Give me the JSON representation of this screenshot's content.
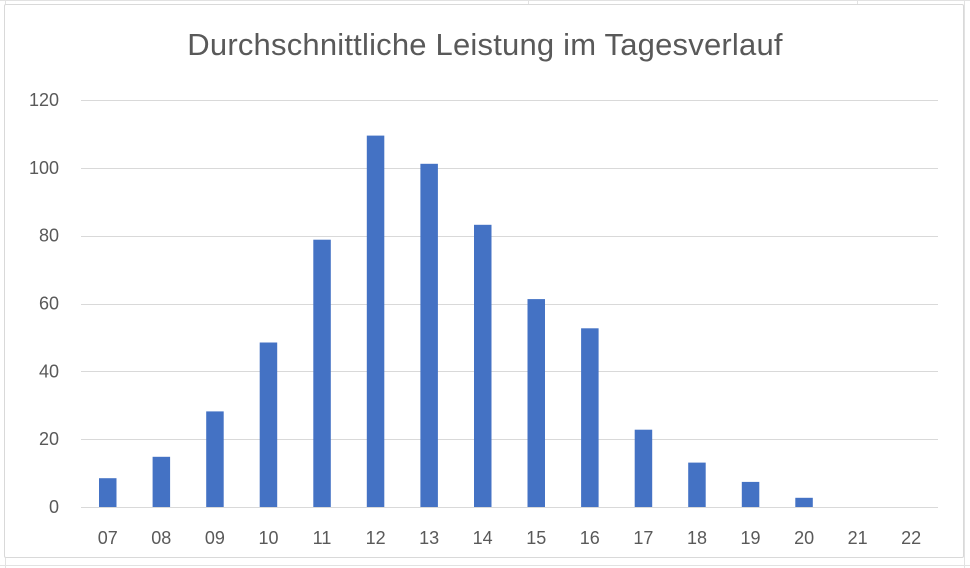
{
  "chart_data": {
    "type": "bar",
    "title": "Durchschnittliche Leistung im Tagesverlauf",
    "xlabel": "",
    "ylabel": "",
    "categories": [
      "07",
      "08",
      "09",
      "10",
      "11",
      "12",
      "13",
      "14",
      "15",
      "16",
      "17",
      "18",
      "19",
      "20",
      "21",
      "22"
    ],
    "values": [
      8.5,
      14.8,
      28.2,
      48.5,
      78.8,
      109.5,
      101.2,
      83.2,
      61.3,
      52.7,
      22.8,
      13.1,
      7.4,
      2.7,
      0,
      0
    ],
    "ylim": [
      0,
      120
    ],
    "yticks": [
      0,
      20,
      40,
      60,
      80,
      100,
      120
    ],
    "grid": true,
    "legend": "none",
    "colors": {
      "bar": "#4472c4",
      "grid": "#d9d9d9",
      "text": "#595959"
    }
  }
}
